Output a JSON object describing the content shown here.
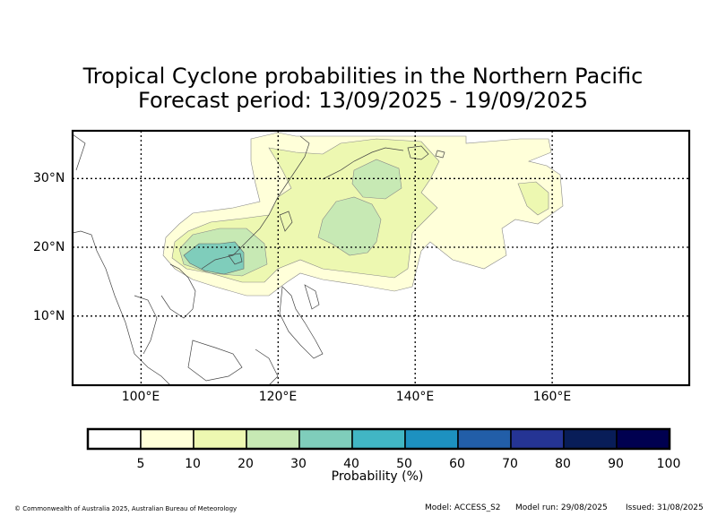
{
  "title": {
    "line1": "Tropical Cyclone probabilities in the Northern Pacific",
    "line2": "Forecast period: 13/09/2025 - 19/09/2025"
  },
  "map": {
    "lon_range": [
      90,
      180
    ],
    "lat_range": [
      0,
      37
    ],
    "lat_ticks": [
      {
        "value": 10,
        "label": "10°N"
      },
      {
        "value": 20,
        "label": "20°N"
      },
      {
        "value": 30,
        "label": "30°N"
      }
    ],
    "lon_ticks": [
      {
        "value": 100,
        "label": "100°E"
      },
      {
        "value": 120,
        "label": "120°E"
      },
      {
        "value": 140,
        "label": "140°E"
      },
      {
        "value": 160,
        "label": "160°E"
      }
    ],
    "gridlines": "dotted"
  },
  "colorbar": {
    "title": "Probability (%)",
    "levels": [
      "5",
      "10",
      "20",
      "30",
      "40",
      "50",
      "60",
      "70",
      "80",
      "90",
      "100"
    ],
    "colors": [
      "#ffffff",
      "#ffffd9",
      "#edf8b1",
      "#c7e9b4",
      "#7fcdbb",
      "#41b6c4",
      "#1d91c0",
      "#225ea8",
      "#253494",
      "#081d58",
      "#000050"
    ]
  },
  "footer": {
    "copyright": "© Commonwealth of Australia 2025, Australian Bureau of Meteorology",
    "model": "Model: ACCESS_S2",
    "model_run": "Model run: 29/08/2025",
    "issued": "Issued: 31/08/2025"
  }
}
